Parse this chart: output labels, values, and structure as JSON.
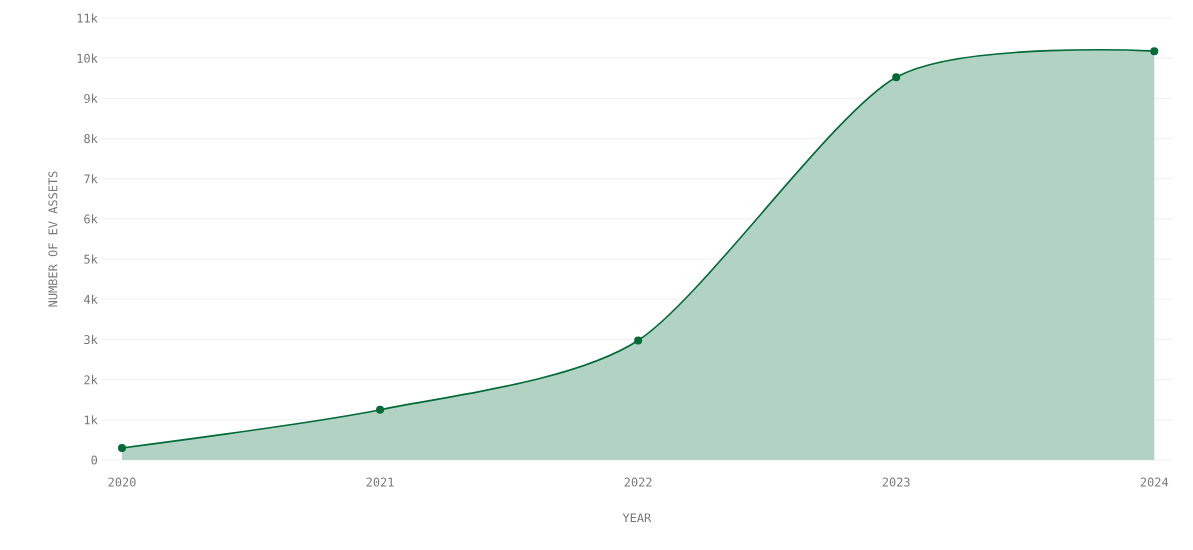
{
  "chart_data": {
    "type": "area",
    "xlabel": "YEAR",
    "ylabel": "NUMBER OF EV ASSETS",
    "categories": [
      "2020",
      "2021",
      "2022",
      "2023",
      "2024"
    ],
    "series": [
      {
        "color": "#006b36",
        "values": [
          300,
          1250,
          2975,
          9525,
          10175
        ]
      }
    ],
    "ylim": [
      0,
      11000
    ],
    "yticks": [
      {
        "value": 0,
        "label": "0"
      },
      {
        "value": 1000,
        "label": "1k"
      },
      {
        "value": 2000,
        "label": "2k"
      },
      {
        "value": 3000,
        "label": "3k"
      },
      {
        "value": 4000,
        "label": "4k"
      },
      {
        "value": 5000,
        "label": "5k"
      },
      {
        "value": 6000,
        "label": "6k"
      },
      {
        "value": 7000,
        "label": "7k"
      },
      {
        "value": 8000,
        "label": "8k"
      },
      {
        "value": 9000,
        "label": "9k"
      },
      {
        "value": 10000,
        "label": "10k"
      },
      {
        "value": 11000,
        "label": "11k"
      }
    ],
    "grid": "y",
    "marker": "circle"
  }
}
